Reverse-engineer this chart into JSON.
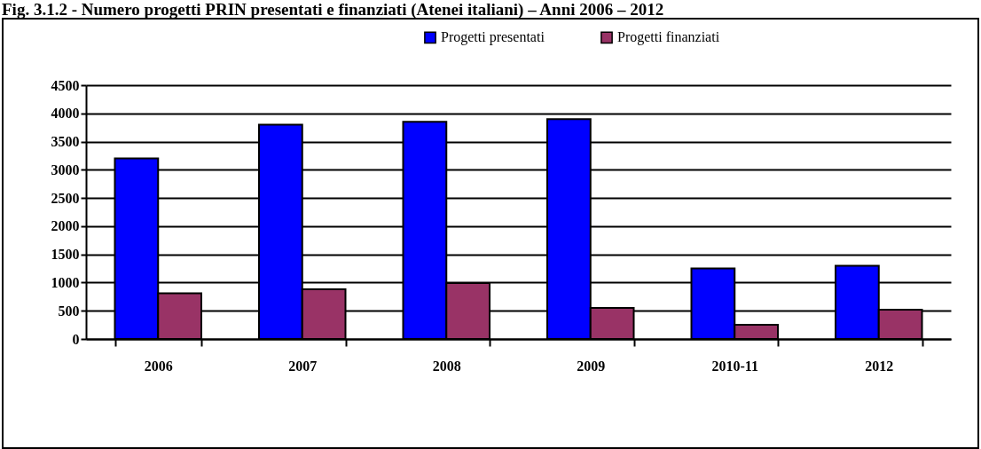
{
  "chart_data": {
    "type": "bar",
    "title": "Fig. 3.1.2 - Numero progetti PRIN presentati e finanziati (Atenei italiani) – Anni 2006 – 2012",
    "categories": [
      "2006",
      "2007",
      "2008",
      "2009",
      "2010-11",
      "2012"
    ],
    "series": [
      {
        "name": "Progetti presentati",
        "color": "#0000ff",
        "values": [
          3200,
          3800,
          3850,
          3900,
          1250,
          1300
        ]
      },
      {
        "name": "Progetti finanziati",
        "color": "#993366",
        "values": [
          810,
          880,
          990,
          550,
          250,
          520
        ]
      }
    ],
    "ylim": [
      0,
      4500
    ],
    "yticks": [
      0,
      500,
      1000,
      1500,
      2000,
      2500,
      3000,
      3500,
      4000,
      4500
    ],
    "grid": "y",
    "legend": "top"
  }
}
